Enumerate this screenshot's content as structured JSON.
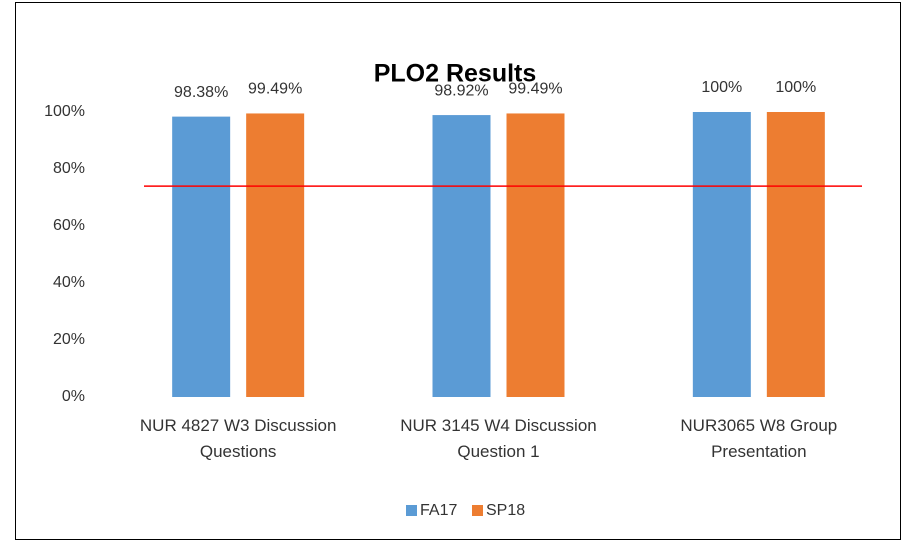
{
  "chart_data": {
    "type": "bar",
    "title": "PLO2 Results",
    "categories": [
      "NUR 4827 W3 Discussion Questions",
      "NUR 3145 W4 Discussion Question 1",
      "NUR3065 W8 Group Presentation"
    ],
    "series": [
      {
        "name": "FA17",
        "color": "#5b9bd5",
        "values": [
          98.38,
          98.92,
          100
        ],
        "value_labels": [
          "98.38%",
          "98.92%",
          "100%"
        ]
      },
      {
        "name": "SP18",
        "color": "#ed7d31",
        "values": [
          99.49,
          99.49,
          100
        ],
        "value_labels": [
          "99.49%",
          "99.49%",
          "100%"
        ]
      }
    ],
    "ylim": [
      0,
      100
    ],
    "yticks": [
      {
        "value": 0,
        "label": "0%"
      },
      {
        "value": 20,
        "label": "20%"
      },
      {
        "value": 40,
        "label": "40%"
      },
      {
        "value": 60,
        "label": "60%"
      },
      {
        "value": 80,
        "label": "80%"
      },
      {
        "value": 100,
        "label": "100%"
      }
    ],
    "grid": false,
    "legend": "bottom",
    "threshold": 74,
    "threshold_color": "#ff0000"
  }
}
